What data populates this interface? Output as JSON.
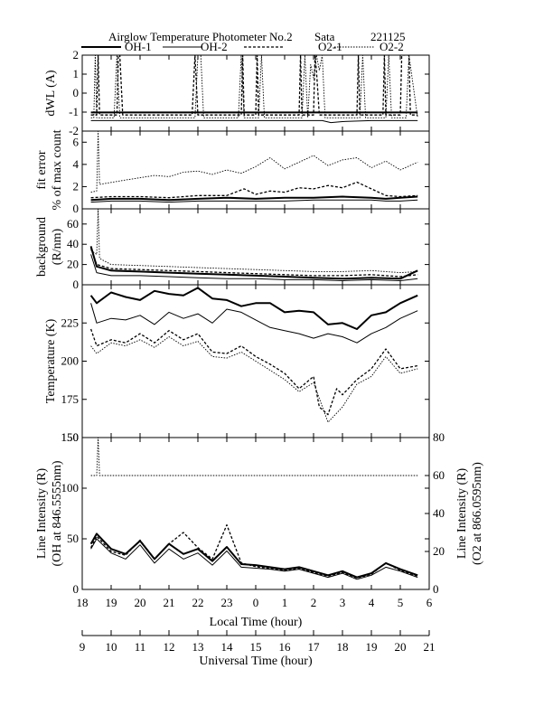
{
  "figure": {
    "title": "Airglow Temperature Photometer No.2",
    "site": "Sata",
    "date": "221125"
  },
  "legend": [
    {
      "name": "OH-1",
      "style": "solid-thick",
      "color": "#000000"
    },
    {
      "name": "OH-2",
      "style": "solid-thin",
      "color": "#000000"
    },
    {
      "name": "O2-1",
      "style": "dashed-thick",
      "color": "#000000"
    },
    {
      "name": "O2-2",
      "style": "dotted-thin",
      "color": "#000000"
    }
  ],
  "chart_data": [
    {
      "type": "line",
      "ylabel": "dWL (A)",
      "ylim": [
        -2,
        2
      ],
      "yticks": [
        -2,
        -1,
        0,
        1,
        2
      ],
      "series": [
        {
          "name": "OH-1",
          "x": [
            9.3,
            12,
            15,
            17.5,
            19,
            20.6
          ],
          "y": [
            -1.02,
            -1.02,
            -1.02,
            -1.02,
            -1.02,
            -1.02
          ]
        },
        {
          "name": "OH-2",
          "x": [
            9.3,
            12,
            15,
            17.3,
            17.6,
            18,
            19,
            20.6
          ],
          "y": [
            -1.45,
            -1.45,
            -1.45,
            -1.45,
            -1.55,
            -1.5,
            -1.45,
            -1.45
          ]
        },
        {
          "name": "O2-1",
          "x": [
            9.3,
            9.5,
            9.55,
            9.6,
            10.2,
            10.25,
            10.3,
            10.4,
            12.8,
            12.9,
            13.0,
            13.1,
            14.5,
            14.55,
            14.6,
            15.0,
            15.05,
            15.1,
            15.3,
            16.5,
            16.55,
            16.6,
            17.0,
            17.05,
            17.1,
            17.2,
            18.5,
            18.55,
            18.6,
            19.4,
            19.45,
            19.5,
            20.0,
            20.05,
            20.3,
            20.35,
            20.6
          ],
          "y": [
            -1.15,
            -1.15,
            2,
            -1.15,
            -1.15,
            2,
            2,
            -1.15,
            -1.15,
            2,
            -1.15,
            -1.15,
            -1.15,
            2,
            -1.15,
            -1.15,
            2,
            -1.15,
            -1.15,
            -1.15,
            2,
            -1.15,
            -1.15,
            2,
            1.2,
            -1.15,
            -1.15,
            2,
            -1.15,
            -1.15,
            2,
            -1.15,
            -1.15,
            2,
            2,
            -1.15,
            -1.15
          ]
        },
        {
          "name": "O2-2",
          "x": [
            9.3,
            9.4,
            9.45,
            9.5,
            10.1,
            10.2,
            10.3,
            12.9,
            13.0,
            13.1,
            13.2,
            14.4,
            14.5,
            14.6,
            15.1,
            15.2,
            15.3,
            16.6,
            16.7,
            16.8,
            16.9,
            17.0,
            17.1,
            17.2,
            17.3,
            17.4,
            17.5,
            18.6,
            18.7,
            18.8,
            19.5,
            19.6,
            19.7,
            20.2,
            20.3,
            20.6
          ],
          "y": [
            -1.3,
            -1.3,
            2,
            -1.3,
            -1.3,
            2,
            -1.3,
            -1.3,
            2,
            2,
            -1.3,
            -1.3,
            2,
            -1.3,
            -1.3,
            2,
            -1.3,
            -1.3,
            2,
            -1.3,
            1.5,
            0.8,
            2,
            1.2,
            2,
            -1.3,
            -1.3,
            -1.3,
            2,
            -1.3,
            -1.3,
            2,
            -1.3,
            -1.3,
            2,
            -1.3
          ]
        }
      ]
    },
    {
      "type": "line",
      "ylabel": "fit error",
      "ylabel2": "% of max count",
      "ylim": [
        0,
        7
      ],
      "yticks": [
        0,
        2,
        4,
        6
      ],
      "series": [
        {
          "name": "OH-1",
          "x": [
            9.3,
            10,
            11,
            12,
            13,
            14,
            15,
            16,
            17,
            18,
            19,
            19.5,
            20,
            20.6
          ],
          "y": [
            0.8,
            0.9,
            0.9,
            0.8,
            0.9,
            1.0,
            0.9,
            1.0,
            1.0,
            1.1,
            1.0,
            0.9,
            1.0,
            1.1
          ]
        },
        {
          "name": "OH-2",
          "x": [
            9.3,
            10,
            11,
            12,
            13,
            14,
            15,
            16,
            17,
            18,
            19,
            19.5,
            20,
            20.6
          ],
          "y": [
            0.6,
            0.7,
            0.7,
            0.6,
            0.7,
            0.7,
            0.7,
            0.7,
            0.8,
            0.8,
            0.8,
            0.7,
            0.7,
            0.8
          ]
        },
        {
          "name": "O2-1",
          "x": [
            9.3,
            10,
            11,
            12,
            13,
            14,
            14.6,
            15,
            15.5,
            16,
            16.5,
            17,
            17.5,
            18,
            18.5,
            19,
            19.5,
            20,
            20.6
          ],
          "y": [
            1.0,
            1.1,
            1.1,
            1.0,
            1.2,
            1.2,
            1.8,
            1.3,
            1.6,
            1.5,
            1.9,
            1.8,
            2.1,
            1.9,
            2.4,
            1.8,
            1.2,
            1.1,
            1.2
          ]
        },
        {
          "name": "O2-2",
          "x": [
            9.3,
            9.5,
            9.55,
            9.6,
            10.5,
            11,
            11.5,
            12,
            12.5,
            13,
            13.5,
            14,
            14.5,
            15,
            15.5,
            16,
            16.5,
            17,
            17.5,
            18,
            18.5,
            19,
            19.5,
            20,
            20.6
          ],
          "y": [
            1.5,
            1.6,
            7,
            2.2,
            2.6,
            2.8,
            3.0,
            2.9,
            3.3,
            3.4,
            3.1,
            3.5,
            3.2,
            3.8,
            4.6,
            3.6,
            4.2,
            4.8,
            3.9,
            4.4,
            4.6,
            3.7,
            4.3,
            3.5,
            4.2
          ]
        }
      ]
    },
    {
      "type": "line",
      "ylabel": "background",
      "ylabel2": "(R/nm)",
      "ylim": [
        0,
        75
      ],
      "yticks": [
        0,
        20,
        40,
        60
      ],
      "series": [
        {
          "name": "OH-1",
          "x": [
            9.3,
            9.5,
            10,
            11,
            12,
            13,
            14,
            15,
            16,
            17,
            18,
            19,
            20,
            20.6
          ],
          "y": [
            38,
            18,
            14,
            13,
            12,
            11,
            10,
            9,
            8,
            7,
            6,
            7,
            6,
            14
          ]
        },
        {
          "name": "OH-2",
          "x": [
            9.3,
            9.5,
            10,
            11,
            12,
            13,
            14,
            15,
            16,
            17,
            18,
            19,
            20,
            20.6
          ],
          "y": [
            30,
            12,
            9,
            9,
            8,
            7,
            6,
            6,
            5,
            5,
            4,
            5,
            4,
            6
          ]
        },
        {
          "name": "O2-1",
          "x": [
            9.3,
            9.5,
            10,
            11,
            12,
            13,
            14,
            15,
            16,
            17,
            18,
            19,
            20,
            20.6
          ],
          "y": [
            36,
            20,
            16,
            15,
            14,
            13,
            12,
            11,
            10,
            9,
            9,
            10,
            8,
            10
          ]
        },
        {
          "name": "O2-2",
          "x": [
            9.3,
            9.5,
            9.55,
            9.6,
            10,
            11,
            12,
            13,
            14,
            15,
            16,
            17,
            18,
            19,
            20,
            20.6
          ],
          "y": [
            34,
            30,
            75,
            26,
            20,
            19,
            18,
            17,
            16,
            15,
            14,
            13,
            13,
            14,
            12,
            13
          ]
        }
      ]
    },
    {
      "type": "line",
      "ylabel": "Temperature (K)",
      "ylim": [
        150,
        250
      ],
      "yticks": [
        150,
        175,
        200,
        225
      ],
      "series": [
        {
          "name": "OH-1",
          "x": [
            9.3,
            9.5,
            10,
            10.5,
            11,
            11.5,
            12,
            12.5,
            13,
            13.5,
            14,
            14.5,
            15,
            15.5,
            16,
            16.5,
            17,
            17.5,
            18,
            18.5,
            19,
            19.5,
            20,
            20.6
          ],
          "y": [
            243,
            238,
            245,
            242,
            240,
            246,
            244,
            243,
            248,
            241,
            240,
            236,
            238,
            238,
            232,
            233,
            232,
            224,
            225,
            221,
            230,
            232,
            238,
            243
          ]
        },
        {
          "name": "OH-2",
          "x": [
            9.3,
            9.5,
            10,
            10.5,
            11,
            11.5,
            12,
            12.5,
            13,
            13.5,
            14,
            14.5,
            15,
            15.5,
            16,
            16.5,
            17,
            17.5,
            18,
            18.5,
            19,
            19.5,
            20,
            20.6
          ],
          "y": [
            238,
            225,
            228,
            227,
            230,
            224,
            232,
            228,
            231,
            225,
            234,
            232,
            227,
            222,
            220,
            218,
            215,
            218,
            216,
            212,
            218,
            222,
            228,
            233
          ]
        },
        {
          "name": "O2-1",
          "x": [
            9.3,
            9.5,
            10,
            10.5,
            11,
            11.5,
            12,
            12.5,
            13,
            13.5,
            14,
            14.5,
            15,
            15.5,
            16,
            16.5,
            17,
            17.2,
            17.5,
            17.8,
            18,
            18.5,
            19,
            19.5,
            20,
            20.6
          ],
          "y": [
            221,
            210,
            214,
            212,
            218,
            212,
            220,
            214,
            218,
            206,
            205,
            210,
            203,
            198,
            192,
            182,
            190,
            170,
            165,
            182,
            178,
            188,
            195,
            208,
            195,
            197
          ]
        },
        {
          "name": "O2-2",
          "x": [
            9.3,
            9.5,
            10,
            10.5,
            11,
            11.5,
            12,
            12.5,
            13,
            13.5,
            14,
            14.5,
            15,
            15.5,
            16,
            16.5,
            17,
            17.5,
            18,
            18.5,
            19,
            19.5,
            20,
            20.6
          ],
          "y": [
            210,
            205,
            212,
            210,
            214,
            209,
            216,
            210,
            213,
            203,
            202,
            206,
            200,
            194,
            188,
            180,
            186,
            160,
            170,
            185,
            190,
            203,
            192,
            195
          ]
        }
      ]
    },
    {
      "type": "line",
      "ylabel": "Line Intensity (R)",
      "ylabel2": "(OH at 846.5555nm)",
      "ylim": [
        0,
        150
      ],
      "yticks": [
        0,
        50,
        100,
        150
      ],
      "y2label": "Line Intensity (R)",
      "y2label2": "(O2 at 866.0595nm)",
      "y2lim": [
        0,
        80
      ],
      "y2ticks": [
        0,
        20,
        40,
        60,
        80
      ],
      "series": [
        {
          "name": "OH-1",
          "axis": "left",
          "x": [
            9.3,
            9.5,
            10,
            10.5,
            11,
            11.5,
            12,
            12.5,
            13,
            13.5,
            14,
            14.5,
            15,
            15.5,
            16,
            16.5,
            17,
            17.5,
            18,
            18.5,
            19,
            19.5,
            20,
            20.6
          ],
          "y": [
            45,
            55,
            40,
            35,
            48,
            30,
            45,
            35,
            40,
            28,
            42,
            25,
            24,
            22,
            20,
            22,
            18,
            14,
            18,
            12,
            16,
            26,
            20,
            14
          ]
        },
        {
          "name": "OH-2",
          "axis": "left",
          "x": [
            9.3,
            9.5,
            10,
            10.5,
            11,
            11.5,
            12,
            12.5,
            13,
            13.5,
            14,
            14.5,
            15,
            15.5,
            16,
            16.5,
            17,
            17.5,
            18,
            18.5,
            19,
            19.5,
            20,
            20.6
          ],
          "y": [
            40,
            50,
            36,
            30,
            44,
            26,
            40,
            30,
            36,
            24,
            38,
            22,
            21,
            20,
            18,
            20,
            16,
            12,
            16,
            10,
            14,
            22,
            18,
            12
          ]
        },
        {
          "name": "O2-1",
          "axis": "right",
          "x": [
            9.3,
            9.5,
            10,
            10.5,
            11,
            11.5,
            12,
            12.5,
            13,
            13.5,
            14,
            14.5,
            15,
            15.5,
            16,
            16.5,
            17,
            17.5,
            18,
            18.5,
            19,
            19.5,
            20,
            20.6
          ],
          "y": [
            22,
            28,
            20,
            18,
            26,
            16,
            24,
            30,
            22,
            16,
            34,
            14,
            12,
            11,
            10,
            11,
            9,
            7,
            9,
            6,
            8,
            14,
            10,
            7
          ]
        },
        {
          "name": "O2-2",
          "axis": "right",
          "x": [
            9.3,
            9.5,
            9.55,
            9.6,
            10,
            11,
            12,
            13,
            14,
            15,
            16,
            17,
            18,
            19,
            20,
            20.6
          ],
          "y": [
            60,
            60,
            80,
            60,
            60,
            60,
            60,
            60,
            60,
            60,
            60,
            60,
            60,
            60,
            60,
            60
          ]
        }
      ]
    }
  ],
  "axes": {
    "x_local_label": "Local Time (hour)",
    "x_local_ticks": [
      "18",
      "19",
      "20",
      "21",
      "22",
      "23",
      "0",
      "1",
      "2",
      "3",
      "4",
      "5",
      "6"
    ],
    "x_ut_label": "Universal Time (hour)",
    "x_ut_ticks": [
      "9",
      "10",
      "11",
      "12",
      "13",
      "14",
      "15",
      "16",
      "17",
      "18",
      "19",
      "20",
      "21"
    ],
    "x_range": [
      9,
      21
    ]
  }
}
